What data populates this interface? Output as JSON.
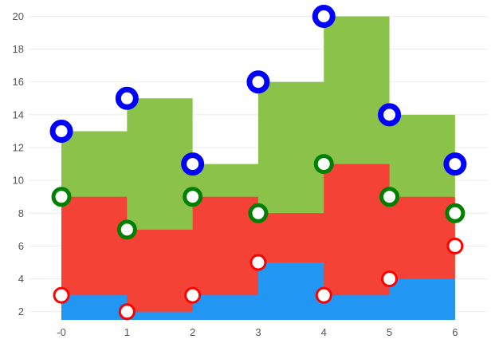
{
  "chart_data": {
    "type": "area",
    "subtype": "stacked step area",
    "x": [
      0,
      1,
      2,
      3,
      4,
      5,
      6
    ],
    "x_tick_labels": [
      "-0",
      "1",
      "2",
      "3",
      "4",
      "5",
      "6"
    ],
    "y_ticks": [
      2,
      4,
      6,
      8,
      10,
      12,
      14,
      16,
      18,
      20
    ],
    "ylim": [
      1.5,
      20.8
    ],
    "xlim": [
      -0.45,
      6.5
    ],
    "grid": "horizontal",
    "series": [
      {
        "values": [
          3,
          2,
          3,
          5,
          3,
          4,
          6
        ],
        "fill": "#2196f3",
        "marker_color": "#ff0000",
        "marker_stroke_width": 3,
        "marker_radius": 9
      },
      {
        "values": [
          9,
          7,
          9,
          8,
          11,
          9,
          8
        ],
        "fill": "#f44336",
        "marker_color": "#008000",
        "marker_stroke_width": 5,
        "marker_radius": 10
      },
      {
        "values": [
          13,
          15,
          11,
          16,
          20,
          14,
          11
        ],
        "fill": "#8bc34a",
        "marker_color": "#0000ff",
        "marker_stroke_width": 7,
        "marker_radius": 11
      }
    ],
    "note_first_series_fill_uses_next_value": true
  }
}
